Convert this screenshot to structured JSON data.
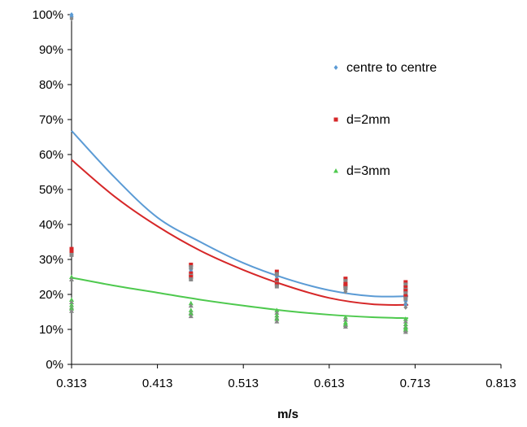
{
  "chart_data": {
    "type": "scatter",
    "title": "",
    "xlabel": "m/s",
    "ylabel": "",
    "xlim": [
      0.313,
      0.813
    ],
    "ylim": [
      0,
      1
    ],
    "x_ticks": [
      0.313,
      0.413,
      0.513,
      0.613,
      0.713,
      0.813
    ],
    "x_tick_labels": [
      "0.313",
      "0.413",
      "0.513",
      "0.613",
      "0.713",
      "0.813"
    ],
    "y_ticks": [
      0,
      0.1,
      0.2,
      0.3,
      0.4,
      0.5,
      0.6,
      0.7,
      0.8,
      0.9,
      1.0
    ],
    "y_tick_labels": [
      "0%",
      "10%",
      "20%",
      "30%",
      "40%",
      "50%",
      "60%",
      "70%",
      "80%",
      "90%",
      "100%"
    ],
    "grid": false,
    "legend_position": "right",
    "series": [
      {
        "name": "centre to centre",
        "color": "#5b9bd5",
        "marker": "diamond",
        "points": [
          [
            0.313,
            1.0
          ],
          [
            0.313,
            0.995
          ],
          [
            0.452,
            0.27
          ],
          [
            0.452,
            0.28
          ],
          [
            0.452,
            0.265
          ],
          [
            0.552,
            0.25
          ],
          [
            0.552,
            0.24
          ],
          [
            0.552,
            0.235
          ],
          [
            0.632,
            0.215
          ],
          [
            0.632,
            0.22
          ],
          [
            0.702,
            0.19
          ],
          [
            0.702,
            0.18
          ],
          [
            0.702,
            0.2
          ],
          [
            0.702,
            0.17
          ]
        ],
        "trend": [
          [
            0.313,
            0.668
          ],
          [
            0.363,
            0.535
          ],
          [
            0.413,
            0.42
          ],
          [
            0.463,
            0.35
          ],
          [
            0.513,
            0.29
          ],
          [
            0.563,
            0.245
          ],
          [
            0.613,
            0.212
          ],
          [
            0.663,
            0.195
          ],
          [
            0.705,
            0.195
          ]
        ]
      },
      {
        "name": "d=2mm",
        "color": "#d62728",
        "marker": "square",
        "points": [
          [
            0.313,
            0.33
          ],
          [
            0.313,
            0.325
          ],
          [
            0.313,
            0.32
          ],
          [
            0.452,
            0.285
          ],
          [
            0.452,
            0.26
          ],
          [
            0.452,
            0.25
          ],
          [
            0.552,
            0.265
          ],
          [
            0.552,
            0.24
          ],
          [
            0.552,
            0.23
          ],
          [
            0.632,
            0.245
          ],
          [
            0.632,
            0.23
          ],
          [
            0.632,
            0.225
          ],
          [
            0.702,
            0.235
          ],
          [
            0.702,
            0.22
          ],
          [
            0.702,
            0.21
          ],
          [
            0.702,
            0.195
          ]
        ],
        "trend": [
          [
            0.313,
            0.585
          ],
          [
            0.363,
            0.48
          ],
          [
            0.413,
            0.395
          ],
          [
            0.463,
            0.325
          ],
          [
            0.513,
            0.27
          ],
          [
            0.563,
            0.225
          ],
          [
            0.613,
            0.19
          ],
          [
            0.663,
            0.172
          ],
          [
            0.705,
            0.17
          ]
        ]
      },
      {
        "name": "d=3mm",
        "color": "#4ec94e",
        "marker": "triangle",
        "points": [
          [
            0.313,
            0.25
          ],
          [
            0.313,
            0.185
          ],
          [
            0.313,
            0.17
          ],
          [
            0.313,
            0.16
          ],
          [
            0.452,
            0.175
          ],
          [
            0.452,
            0.155
          ],
          [
            0.452,
            0.145
          ],
          [
            0.552,
            0.155
          ],
          [
            0.552,
            0.14
          ],
          [
            0.552,
            0.13
          ],
          [
            0.632,
            0.135
          ],
          [
            0.632,
            0.12
          ],
          [
            0.632,
            0.115
          ],
          [
            0.702,
            0.13
          ],
          [
            0.702,
            0.115
          ],
          [
            0.702,
            0.105
          ],
          [
            0.702,
            0.1
          ]
        ],
        "trend": [
          [
            0.313,
            0.248
          ],
          [
            0.363,
            0.225
          ],
          [
            0.413,
            0.205
          ],
          [
            0.463,
            0.185
          ],
          [
            0.513,
            0.168
          ],
          [
            0.563,
            0.153
          ],
          [
            0.613,
            0.142
          ],
          [
            0.663,
            0.135
          ],
          [
            0.705,
            0.132
          ]
        ]
      }
    ]
  }
}
